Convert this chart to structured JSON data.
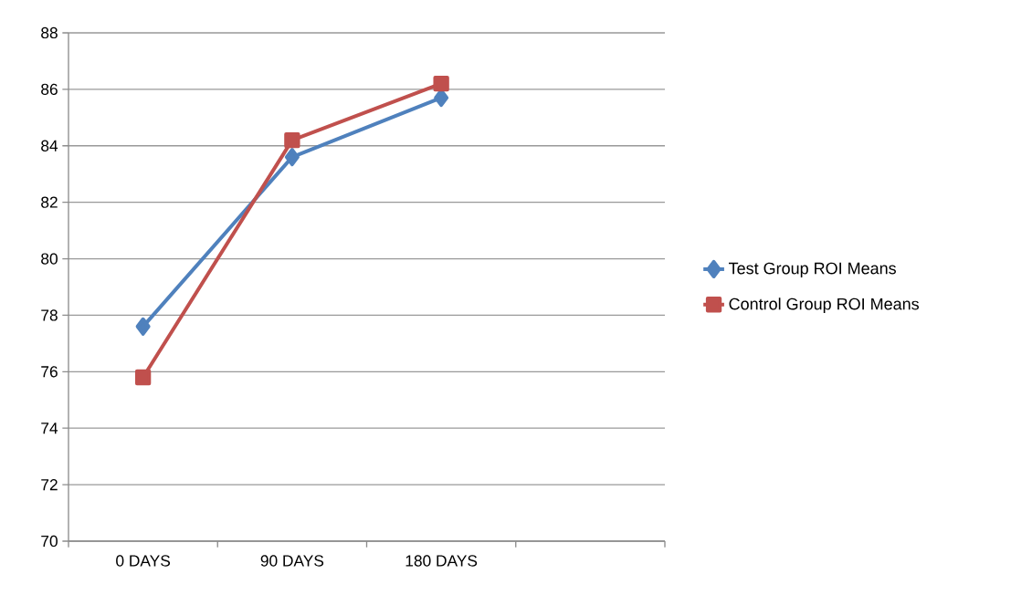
{
  "chart_data": {
    "type": "line",
    "categories": [
      "0 DAYS",
      "90 DAYS",
      "180 DAYS",
      null
    ],
    "series": [
      {
        "name": "Test Group ROI Means",
        "color": "#4f81bd",
        "marker": "diamond",
        "values": [
          77.6,
          83.6,
          85.7,
          null
        ]
      },
      {
        "name": "Control Group ROI Means",
        "color": "#c0504d",
        "marker": "square",
        "values": [
          75.8,
          84.2,
          86.2,
          null
        ]
      }
    ],
    "ylim": [
      70,
      88
    ],
    "yticks": [
      70,
      72,
      74,
      76,
      78,
      80,
      82,
      84,
      86,
      88
    ],
    "grid": "y",
    "legend": "right",
    "line_style": "solid"
  }
}
